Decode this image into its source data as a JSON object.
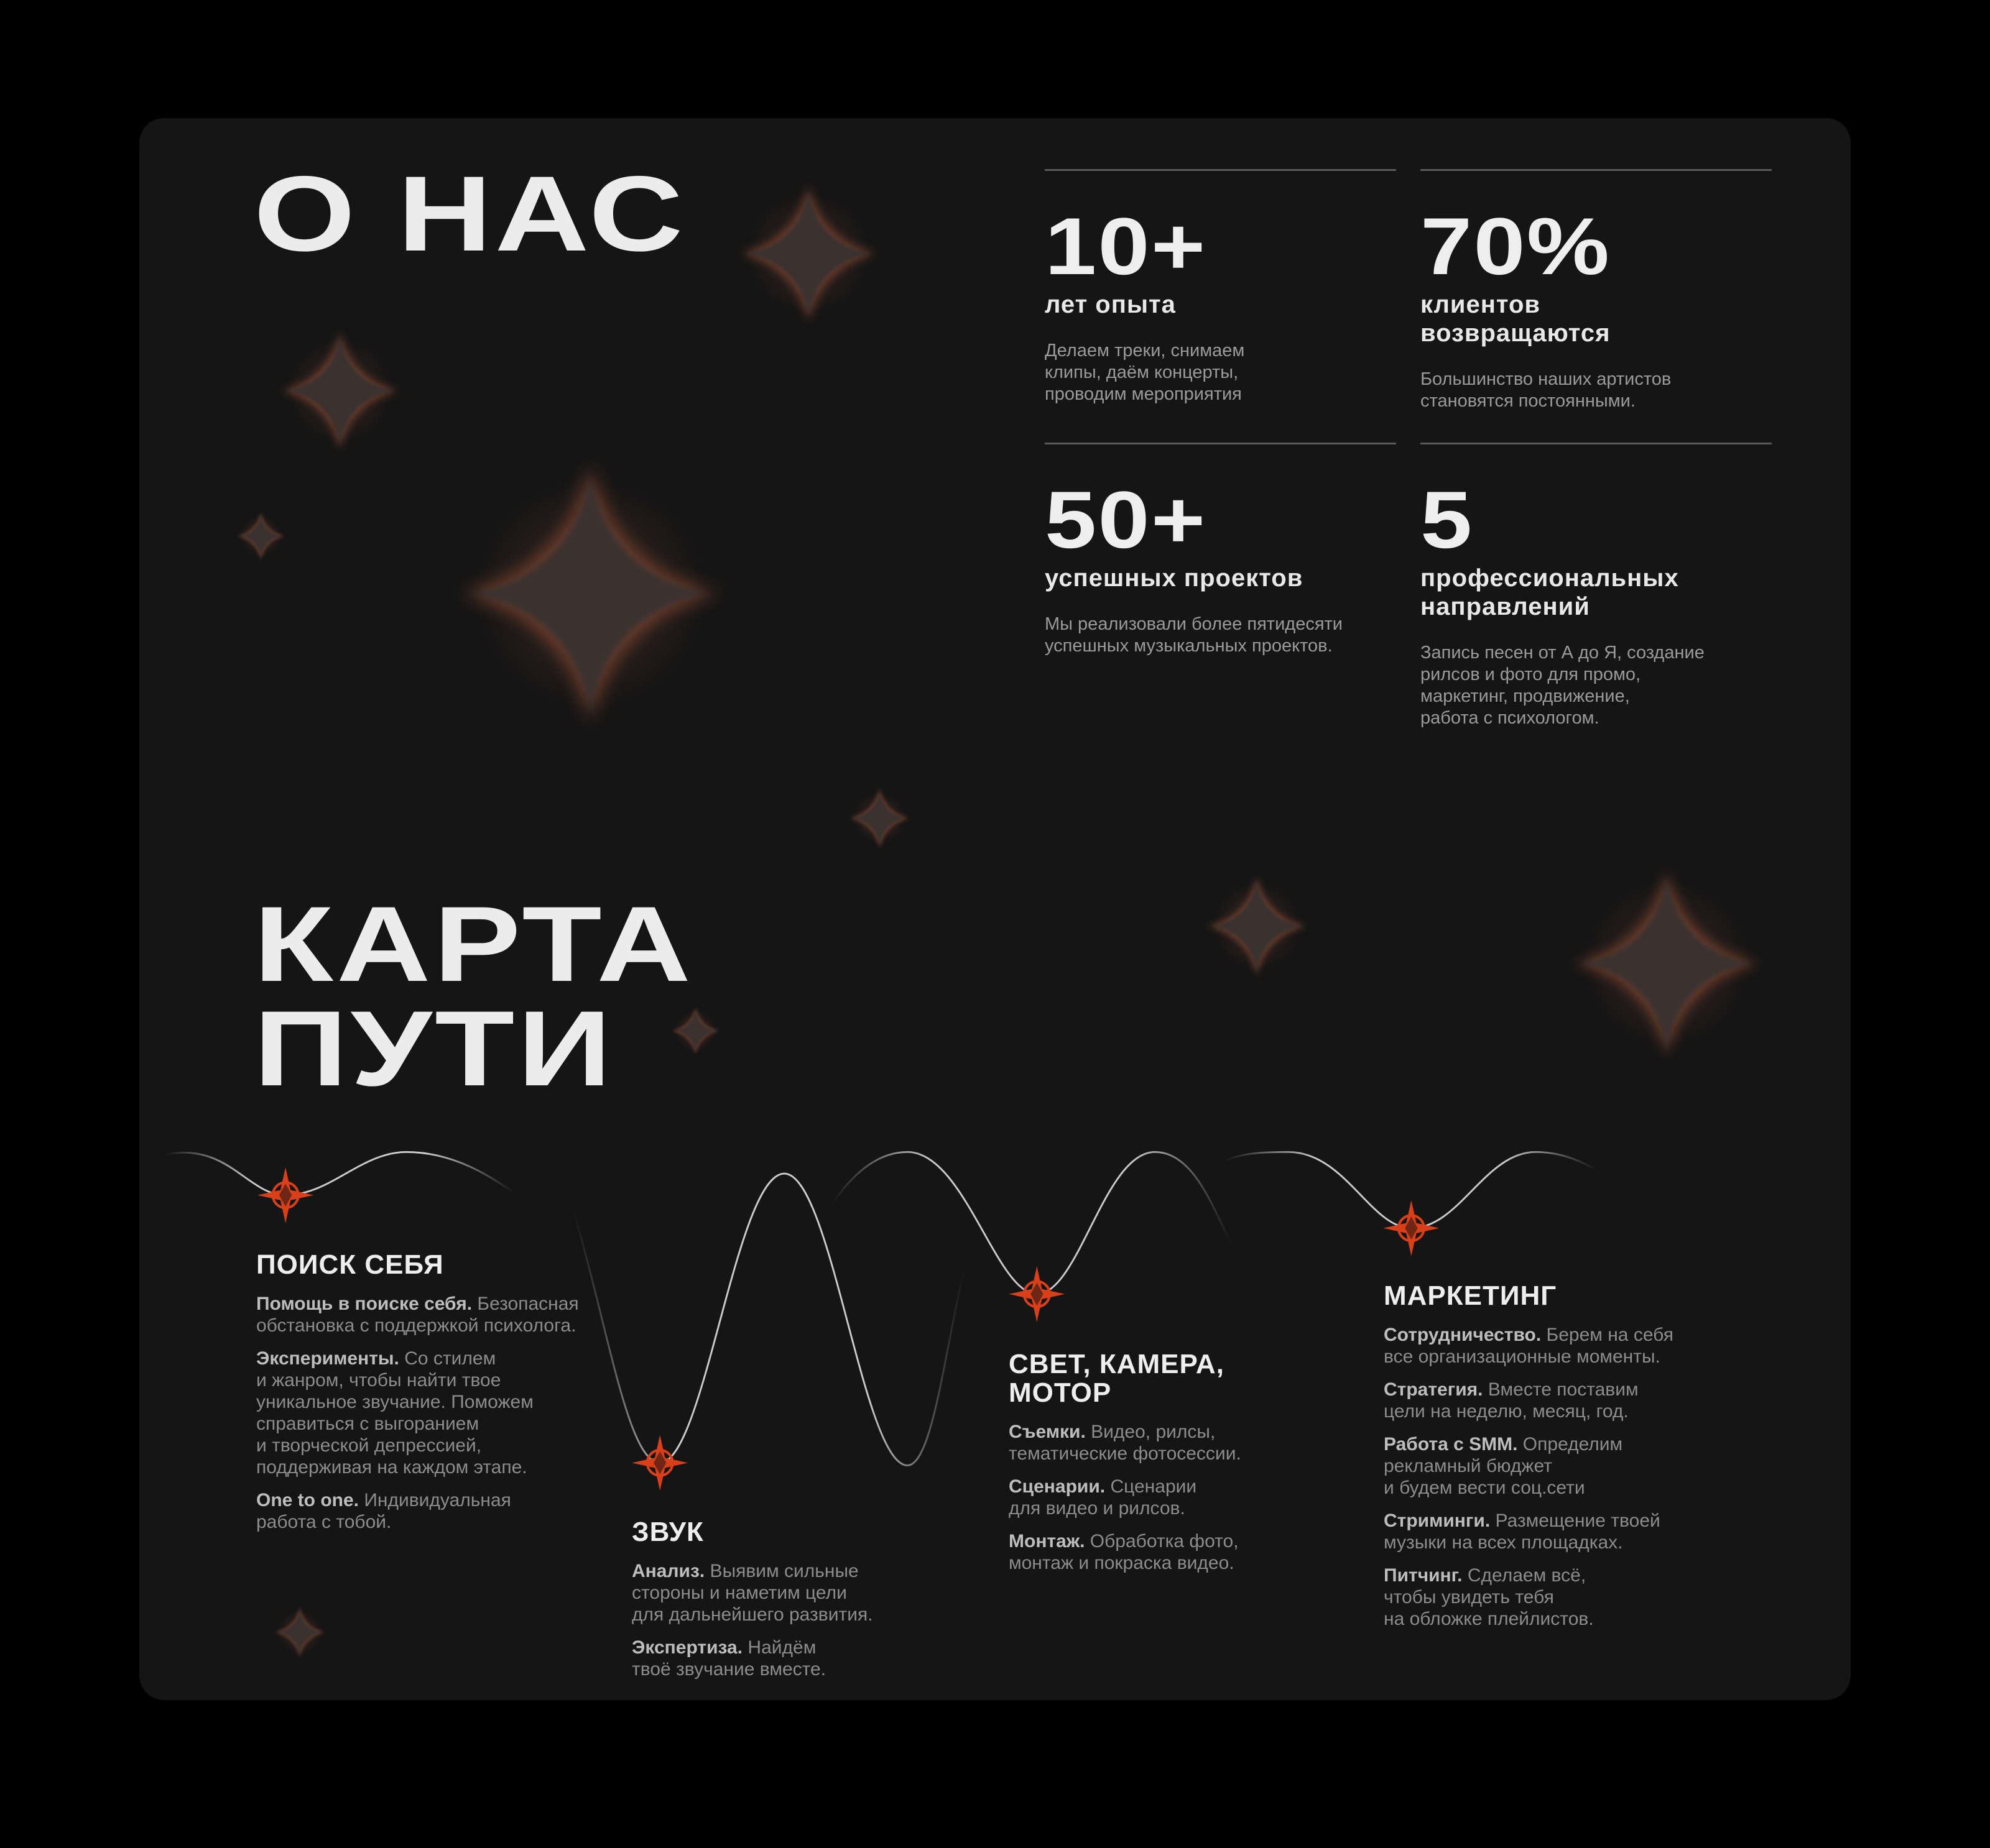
{
  "about": {
    "title": "О НАС",
    "stats": [
      {
        "value": "10+",
        "label": "лет опыта",
        "desc": "Делаем треки, снимаем\nклипы, даём концерты,\nпроводим мероприятия"
      },
      {
        "value": "70%",
        "label": "клиентов\nвозвращаются",
        "desc": "Большинство наших артистов\nстановятся постоянными."
      },
      {
        "value": "50+",
        "label": "успешных проектов",
        "desc": "Мы реализовали более пятидесяти\nуспешных музыкальных проектов."
      },
      {
        "value": "5",
        "label": "профессиональных\nнаправлений",
        "desc": "Запись песен от А до Я, создание\nрилсов и фото для промо,\nмаркетинг, продвижение,\nработа с психологом."
      }
    ]
  },
  "journey": {
    "title_line1": "КАРТА",
    "title_line2": "ПУТИ",
    "accent_color": "#d9401a",
    "marker_icon": "compass-star-icon",
    "stages": [
      {
        "title": "ПОИСК СЕБЯ",
        "items": [
          {
            "bold": "Помощь в поиске себя.",
            "text": " Безопасная\nобстановка с поддержкой психолога."
          },
          {
            "bold": "Эксперименты.",
            "text": " Со стилем\nи жанром, чтобы найти твое\nуникальное звучание. Поможем\nсправиться с выгоранием\nи творческой депрессией,\nподдерживая на каждом этапе."
          },
          {
            "bold": "One to one.",
            "text": " Индивидуальная\nработа с тобой."
          }
        ]
      },
      {
        "title": "ЗВУК",
        "items": [
          {
            "bold": "Анализ.",
            "text": " Выявим сильные\nстороны и наметим цели\nдля дальнейшего развития."
          },
          {
            "bold": "Экспертиза.",
            "text": " Найдём\nтвоё звучание вместе."
          }
        ]
      },
      {
        "title": "СВЕТ, КАМЕРА,\nМОТОР",
        "items": [
          {
            "bold": "Съемки.",
            "text": " Видео, рилсы,\nтематические фотосессии."
          },
          {
            "bold": "Сценарии.",
            "text": " Сценарии\nдля видео и рилсов."
          },
          {
            "bold": "Монтаж.",
            "text": " Обработка фото,\nмонтаж и покраска видео."
          }
        ]
      },
      {
        "title": "МАРКЕТИНГ",
        "items": [
          {
            "bold": "Сотрудничество.",
            "text": " Берем на себя\nвсе организационные моменты."
          },
          {
            "bold": "Стратегия.",
            "text": " Вместе поставим\nцели на неделю, месяц, год."
          },
          {
            "bold": "Работа с SMM.",
            "text": " Определим\nрекламный бюджет\nи будем вести соц.сети"
          },
          {
            "bold": "Стриминги.",
            "text": " Размещение твоей\nмузыки на всех площадках."
          },
          {
            "bold": "Питчинг.",
            "text": " Сделаем всё,\nчтобы увидеть тебя\nна обложке плейлистов."
          }
        ]
      }
    ]
  }
}
